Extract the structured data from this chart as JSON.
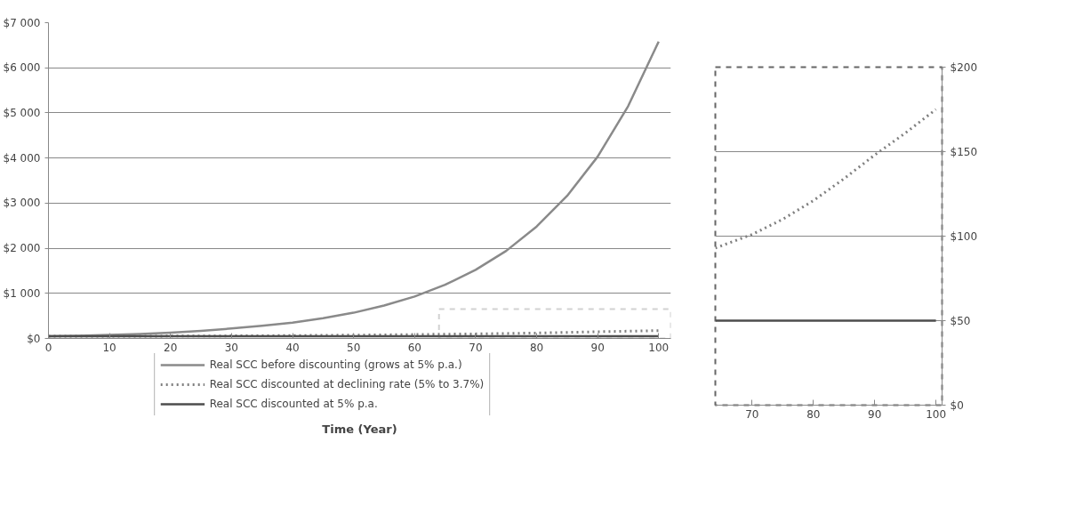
{
  "chart_data": [
    {
      "type": "line",
      "xlabel": "Time (Year)",
      "xlim": [
        0,
        102
      ],
      "ylim": [
        0,
        7000
      ],
      "xticks": [
        0,
        10,
        20,
        30,
        40,
        50,
        60,
        70,
        80,
        90,
        100
      ],
      "yticks": [
        {
          "value": 0,
          "label": "$0"
        },
        {
          "value": 1000,
          "label": "$1 000"
        },
        {
          "value": 2000,
          "label": "$2 000"
        },
        {
          "value": 3000,
          "label": "$3 000"
        },
        {
          "value": 4000,
          "label": "$4 000"
        },
        {
          "value": 5000,
          "label": "$5 000"
        },
        {
          "value": 6000,
          "label": "$6 000"
        },
        {
          "value": 7000,
          "label": "$7 000"
        }
      ],
      "grid": "y",
      "legend": "bottom",
      "x": [
        0,
        5,
        10,
        15,
        20,
        25,
        30,
        35,
        40,
        45,
        50,
        55,
        60,
        65,
        70,
        75,
        80,
        85,
        90,
        95,
        100
      ],
      "series": [
        {
          "name": "Real SCC before discounting (grows at 5% p.a.)",
          "color": "#8a8a8a",
          "line_style": "solid",
          "values": [
            50,
            60,
            80,
            100,
            130,
            170,
            220,
            280,
            350,
            450,
            570,
            730,
            930,
            1190,
            1520,
            1940,
            2480,
            3160,
            4030,
            5150,
            6580
          ]
        },
        {
          "name": "Real SCC discounted at declining rate (5% to 3.7%)",
          "color": "#7f7f7f",
          "line_style": "dotted",
          "values": [
            50,
            50,
            50,
            51,
            52,
            54,
            57,
            60,
            64,
            69,
            74,
            80,
            87,
            95,
            101,
            110,
            121,
            134,
            148,
            161,
            175
          ]
        },
        {
          "name": "Real SCC discounted at 5% p.a.",
          "color": "#4d4d4d",
          "line_style": "solid",
          "values": [
            50,
            50,
            50,
            50,
            50,
            50,
            50,
            50,
            50,
            50,
            50,
            50,
            50,
            50,
            50,
            50,
            50,
            50,
            50,
            50,
            50
          ]
        }
      ]
    },
    {
      "type": "line",
      "xlim": [
        64,
        101
      ],
      "ylim": [
        0,
        200
      ],
      "xticks": [
        70,
        80,
        90,
        100
      ],
      "yticks": [
        {
          "value": 0,
          "label": "$0"
        },
        {
          "value": 50,
          "label": "$50"
        },
        {
          "value": 100,
          "label": "$100"
        },
        {
          "value": 150,
          "label": "$150"
        },
        {
          "value": 200,
          "label": "$200"
        }
      ],
      "grid": "y",
      "x": [
        64,
        70,
        75,
        80,
        85,
        90,
        95,
        100
      ],
      "series": [
        {
          "color": "#7f7f7f",
          "line_style": "dotted",
          "values": [
            93,
            101,
            110,
            121,
            134,
            148,
            161,
            175
          ]
        },
        {
          "color": "#4d4d4d",
          "line_style": "solid",
          "values": [
            50,
            50,
            50,
            50,
            50,
            50,
            50,
            50
          ]
        }
      ]
    }
  ]
}
